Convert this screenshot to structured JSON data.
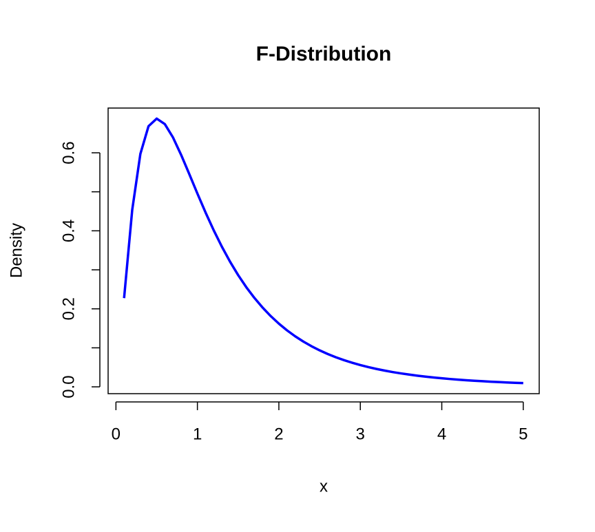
{
  "chart_data": {
    "type": "line",
    "title": "F-Distribution",
    "xlabel": "x",
    "ylabel": "Density",
    "x": [
      0.1,
      0.2,
      0.3,
      0.4,
      0.5,
      0.6,
      0.7,
      0.8,
      0.9,
      1.0,
      1.1,
      1.2,
      1.3,
      1.4,
      1.5,
      1.6,
      1.7,
      1.8,
      1.9,
      2.0,
      2.1,
      2.2,
      2.3,
      2.4,
      2.5,
      2.6,
      2.7,
      2.8,
      2.9,
      3.0,
      3.1,
      3.2,
      3.3,
      3.4,
      3.5,
      3.6,
      3.7,
      3.8,
      3.9,
      4.0,
      4.1,
      4.2,
      4.3,
      4.4,
      4.5,
      4.6,
      4.7,
      4.8,
      4.9,
      5.0
    ],
    "y": [
      0.2274,
      0.4538,
      0.5972,
      0.6682,
      0.6876,
      0.6735,
      0.6395,
      0.5948,
      0.5456,
      0.4955,
      0.447,
      0.4014,
      0.3594,
      0.3211,
      0.2865,
      0.2555,
      0.2279,
      0.2033,
      0.1814,
      0.162,
      0.1448,
      0.1296,
      0.1161,
      0.1042,
      0.0936,
      0.0842,
      0.0758,
      0.0684,
      0.0618,
      0.0558,
      0.0505,
      0.0458,
      0.0416,
      0.0378,
      0.0344,
      0.0314,
      0.0286,
      0.0261,
      0.024,
      0.0219,
      0.0201,
      0.0184,
      0.0169,
      0.0155,
      0.0144,
      0.0132,
      0.0122,
      0.0112,
      0.0104,
      0.0096
    ],
    "color": "#0000ff",
    "xlim": [
      -0.096,
      5.196
    ],
    "xticks": [
      0,
      1,
      2,
      3,
      4,
      5
    ],
    "ylim": [
      -0.0175,
      0.7147
    ],
    "yticks": [
      {
        "value": 0,
        "label": "0.0"
      },
      0.2,
      0.4,
      0.6
    ],
    "yticks_minor": [
      0.1,
      0.3,
      0.5
    ]
  }
}
